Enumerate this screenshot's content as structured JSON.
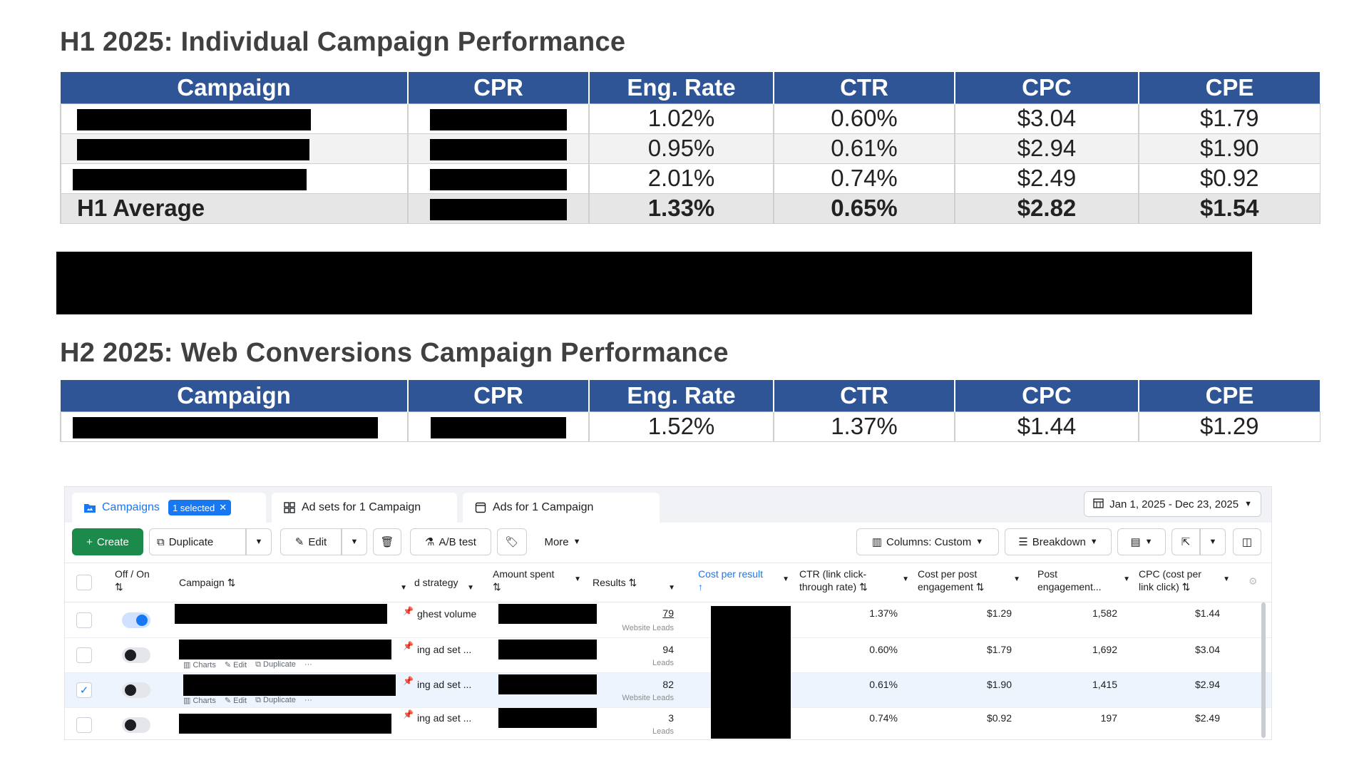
{
  "h1": {
    "title": "H1 2025: Individual Campaign Performance",
    "columns": [
      "Campaign",
      "CPR",
      "Eng. Rate",
      "CTR",
      "CPC",
      "CPE"
    ],
    "rows": [
      {
        "campaign": "",
        "cpr": "",
        "eng_rate": "1.02%",
        "ctr": "0.60%",
        "cpc": "$3.04",
        "cpe": "$1.79"
      },
      {
        "campaign": "",
        "cpr": "",
        "eng_rate": "0.95%",
        "ctr": "0.61%",
        "cpc": "$2.94",
        "cpe": "$1.90"
      },
      {
        "campaign": "",
        "cpr": "",
        "eng_rate": "2.01%",
        "ctr": "0.74%",
        "cpc": "$2.49",
        "cpe": "$0.92"
      }
    ],
    "average": {
      "label": "H1 Average",
      "cpr": "",
      "eng_rate": "1.33%",
      "ctr": "0.65%",
      "cpc": "$2.82",
      "cpe": "$1.54"
    }
  },
  "h2": {
    "title": "H2 2025: Web Conversions Campaign Performance",
    "columns": [
      "Campaign",
      "CPR",
      "Eng. Rate",
      "CTR",
      "CPC",
      "CPE"
    ],
    "rows": [
      {
        "campaign": "",
        "cpr": "",
        "eng_rate": "1.52%",
        "ctr": "1.37%",
        "cpc": "$1.44",
        "cpe": "$1.29"
      }
    ]
  },
  "ads_manager": {
    "tabs": {
      "campaigns": "Campaigns",
      "selected_badge": "1 selected",
      "ad_sets": "Ad sets for 1 Campaign",
      "ads": "Ads for 1 Campaign"
    },
    "date_range": "Jan 1, 2025 - Dec 23, 2025",
    "toolbar": {
      "create": "Create",
      "duplicate": "Duplicate",
      "edit": "Edit",
      "ab_test": "A/B test",
      "more": "More",
      "columns": "Columns: Custom",
      "breakdown": "Breakdown"
    },
    "headers": {
      "off_on": "Off / On",
      "campaign": "Campaign",
      "strategy": "d strategy",
      "amount_spent": "Amount spent",
      "results": "Results",
      "cost_per_result": "Cost per result",
      "ctr_1": "CTR (link click-",
      "ctr_2": "through rate)",
      "cpe_1": "Cost per post",
      "cpe_2": "engagement",
      "post_eng_1": "Post",
      "post_eng_2": "engagement...",
      "cpc_1": "CPC (cost per",
      "cpc_2": "link click)"
    },
    "row_actions": {
      "charts": "Charts",
      "edit": "Edit",
      "duplicate": "Duplicate"
    },
    "rows": [
      {
        "toggle": "on",
        "selected": false,
        "strategy": "ghest volume",
        "results": "79",
        "results_sub": "Website Leads",
        "ctr": "1.37%",
        "cpe": "$1.29",
        "post_engagement": "1,582",
        "cpc": "$1.44"
      },
      {
        "toggle": "off",
        "selected": false,
        "strategy": "ing ad set ...",
        "results": "94",
        "results_sub": "Leads",
        "ctr": "0.60%",
        "cpe": "$1.79",
        "post_engagement": "1,692",
        "cpc": "$3.04"
      },
      {
        "toggle": "off",
        "selected": true,
        "strategy": "ing ad set ...",
        "results": "82",
        "results_sub": "Website Leads",
        "ctr": "0.61%",
        "cpe": "$1.90",
        "post_engagement": "1,415",
        "cpc": "$2.94"
      },
      {
        "toggle": "off",
        "selected": false,
        "strategy": "ing ad set ...",
        "results": "3",
        "results_sub": "Leads",
        "ctr": "0.74%",
        "cpe": "$0.92",
        "post_engagement": "197",
        "cpc": "$2.49"
      }
    ],
    "colors": {
      "accent": "#1877f2",
      "create": "#1b8a4a",
      "table_header": "#2f5596"
    }
  }
}
